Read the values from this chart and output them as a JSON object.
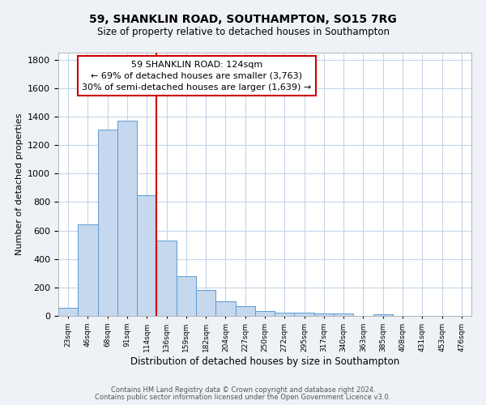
{
  "title": "59, SHANKLIN ROAD, SOUTHAMPTON, SO15 7RG",
  "subtitle": "Size of property relative to detached houses in Southampton",
  "xlabel": "Distribution of detached houses by size in Southampton",
  "ylabel": "Number of detached properties",
  "bin_labels": [
    "23sqm",
    "46sqm",
    "68sqm",
    "91sqm",
    "114sqm",
    "136sqm",
    "159sqm",
    "182sqm",
    "204sqm",
    "227sqm",
    "250sqm",
    "272sqm",
    "295sqm",
    "317sqm",
    "340sqm",
    "363sqm",
    "385sqm",
    "408sqm",
    "431sqm",
    "453sqm",
    "476sqm"
  ],
  "bar_values": [
    55,
    645,
    1310,
    1370,
    850,
    530,
    280,
    185,
    105,
    68,
    35,
    25,
    25,
    18,
    15,
    0,
    12,
    0,
    0,
    0,
    0
  ],
  "bar_color": "#c5d8ed",
  "bar_edge_color": "#5b9bd5",
  "vline_x_bin": 5,
  "vline_color": "#cc0000",
  "annotation_title": "59 SHANKLIN ROAD: 124sqm",
  "annotation_line1": "← 69% of detached houses are smaller (3,763)",
  "annotation_line2": "30% of semi-detached houses are larger (1,639) →",
  "annotation_box_color": "#ffffff",
  "annotation_box_edge_color": "#cc0000",
  "ylim": [
    0,
    1850
  ],
  "yticks": [
    0,
    200,
    400,
    600,
    800,
    1000,
    1200,
    1400,
    1600,
    1800
  ],
  "footer1": "Contains HM Land Registry data © Crown copyright and database right 2024.",
  "footer2": "Contains public sector information licensed under the Open Government Licence v3.0.",
  "background_color": "#eef2f7",
  "plot_background_color": "#ffffff",
  "grid_color": "#c5d5e8"
}
